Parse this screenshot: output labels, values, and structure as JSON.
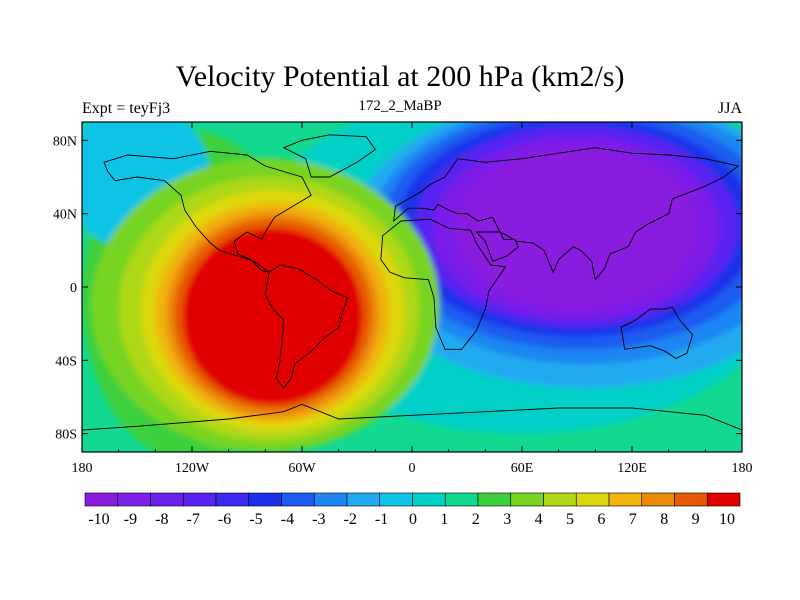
{
  "chart_data": {
    "type": "heatmap",
    "title": "Velocity Potential at 200 hPa (km2/s)",
    "left_string": "Expt = teyFj3",
    "center_string": "172_2_MaBP",
    "right_string": "JJA",
    "x_ticks": [
      "180",
      "120W",
      "60W",
      "0",
      "60E",
      "120E",
      "180"
    ],
    "x_tick_values": [
      -180,
      -120,
      -60,
      0,
      60,
      120,
      180
    ],
    "y_ticks": [
      "80N",
      "40N",
      "0",
      "40S",
      "80S"
    ],
    "y_tick_values": [
      80,
      40,
      0,
      -40,
      -80
    ],
    "xlim": [
      -180,
      180
    ],
    "ylim": [
      -90,
      90
    ],
    "colorbar_labels": [
      "-10",
      "-9",
      "-8",
      "-7",
      "-6",
      "-5",
      "-4",
      "-3",
      "-2",
      "-1",
      "0",
      "1",
      "2",
      "3",
      "4",
      "5",
      "6",
      "7",
      "8",
      "9",
      "10"
    ],
    "levels": [
      -10,
      -9,
      -8,
      -7,
      -6,
      -5,
      -4,
      -3,
      -2,
      -1,
      0,
      1,
      2,
      3,
      4,
      5,
      6,
      7,
      8,
      9,
      10
    ],
    "field_features": [
      {
        "name": "positive maximum",
        "lon": -75,
        "lat": -15,
        "value": 10
      },
      {
        "name": "negative minimum",
        "lon": 90,
        "lat": 30,
        "value": -10
      }
    ],
    "colors": {
      "min_end": "#8a1ce0",
      "mid": "#00d0d0",
      "max_end": "#e00000"
    }
  }
}
